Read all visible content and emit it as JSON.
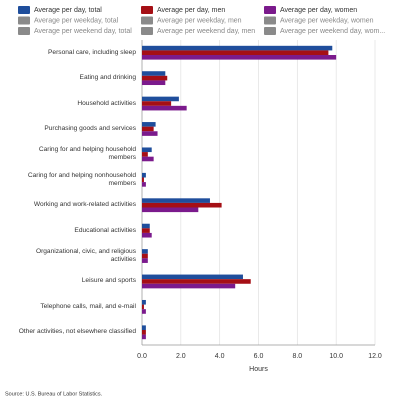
{
  "chart_data": {
    "type": "hbar",
    "categories": [
      "Personal care, including sleep",
      "Eating and drinking",
      "Household activities",
      "Purchasing goods and services",
      "Caring for and helping household members",
      "Caring for and helping nonhousehold members",
      "Working and work-related activities",
      "Educational activities",
      "Organizational, civic, and religious activities",
      "Leisure and sports",
      "Telephone calls, mail, and e-mail",
      "Other activities, not elsewhere classified"
    ],
    "series": [
      {
        "name": "Average per day, total",
        "color": "#1f4e9c",
        "visible": true,
        "values": [
          9.8,
          1.2,
          1.9,
          0.7,
          0.5,
          0.2,
          3.5,
          0.4,
          0.3,
          5.2,
          0.2,
          0.2
        ]
      },
      {
        "name": "Average per day, men",
        "color": "#a50f15",
        "visible": true,
        "values": [
          9.6,
          1.3,
          1.5,
          0.6,
          0.3,
          0.1,
          4.1,
          0.4,
          0.3,
          5.6,
          0.1,
          0.2
        ]
      },
      {
        "name": "Average per day, women",
        "color": "#7b1a8c",
        "visible": true,
        "values": [
          10.0,
          1.2,
          2.3,
          0.8,
          0.6,
          0.2,
          2.9,
          0.5,
          0.3,
          4.8,
          0.2,
          0.2
        ]
      },
      {
        "name": "Average per weekday, total",
        "color": "#8a8a8a",
        "visible": false,
        "values": [
          null,
          null,
          null,
          null,
          null,
          null,
          null,
          null,
          null,
          null,
          null,
          null
        ]
      },
      {
        "name": "Average per weekday, men",
        "color": "#8a8a8a",
        "visible": false,
        "values": [
          null,
          null,
          null,
          null,
          null,
          null,
          null,
          null,
          null,
          null,
          null,
          null
        ]
      },
      {
        "name": "Average per weekday, women",
        "color": "#8a8a8a",
        "visible": false,
        "values": [
          null,
          null,
          null,
          null,
          null,
          null,
          null,
          null,
          null,
          null,
          null,
          null
        ]
      },
      {
        "name": "Average per weekend day, total",
        "color": "#8a8a8a",
        "visible": false,
        "values": [
          null,
          null,
          null,
          null,
          null,
          null,
          null,
          null,
          null,
          null,
          null,
          null
        ]
      },
      {
        "name": "Average per weekend day, men",
        "color": "#8a8a8a",
        "visible": false,
        "values": [
          null,
          null,
          null,
          null,
          null,
          null,
          null,
          null,
          null,
          null,
          null,
          null
        ]
      },
      {
        "name": "Average per weekend day, wom...",
        "color": "#8a8a8a",
        "visible": false,
        "values": [
          null,
          null,
          null,
          null,
          null,
          null,
          null,
          null,
          null,
          null,
          null,
          null
        ]
      }
    ],
    "xlabel": "Hours",
    "xlim": [
      0,
      12
    ],
    "xticks": [
      {
        "value": 0,
        "label": "0.0"
      },
      {
        "value": 2,
        "label": "2.0"
      },
      {
        "value": 4,
        "label": "4.0"
      },
      {
        "value": 6,
        "label": "6.0"
      },
      {
        "value": 8,
        "label": "8.0"
      },
      {
        "value": 10,
        "label": "10.0"
      },
      {
        "value": 12,
        "label": "12.0"
      }
    ],
    "grid": true,
    "legend": "top",
    "source": "Source: U.S. Bureau of Labor Statistics."
  }
}
